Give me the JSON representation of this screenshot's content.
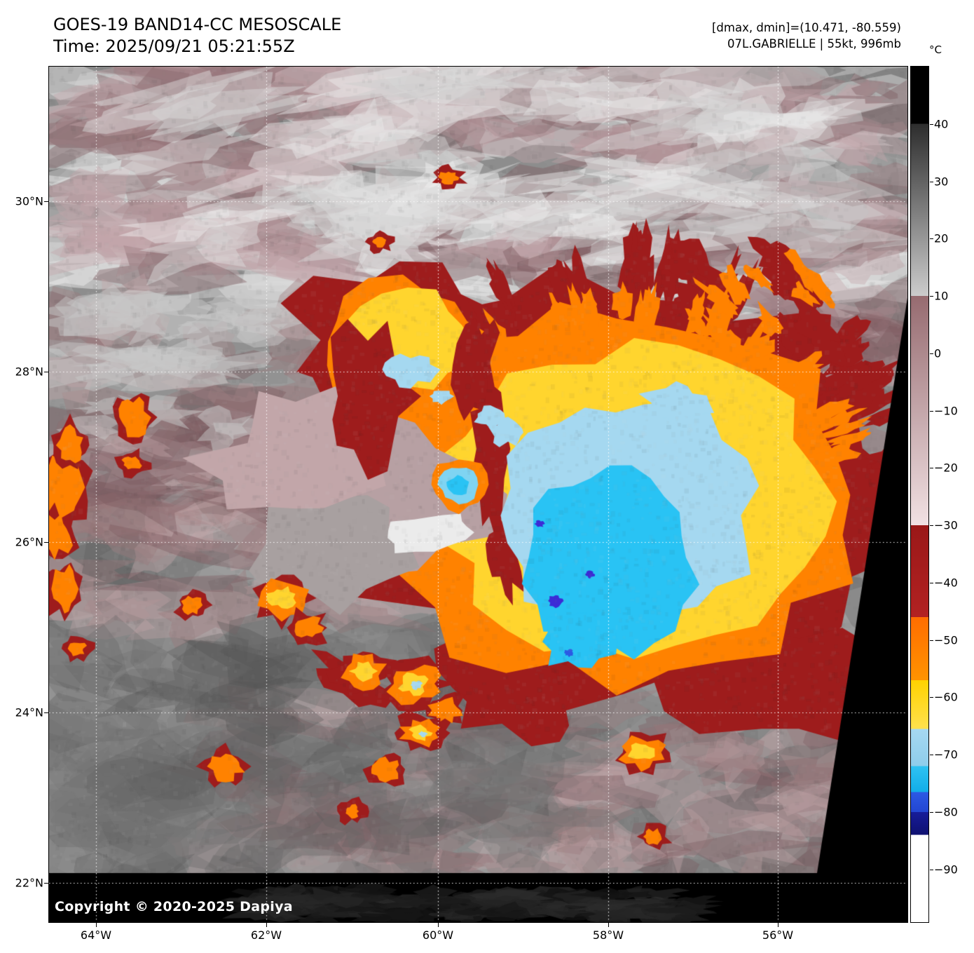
{
  "header": {
    "title": "GOES-19 BAND14-CC MESOSCALE",
    "time_line": "Time: 2025/09/21 05:21:55Z",
    "dmax_dmin": "[dmax, dmin]=(10.471, -80.559)",
    "storm_info": "07L.GABRIELLE | 55kt, 996mb"
  },
  "map": {
    "copyright": "Copyright © 2020-2025 Dapiya",
    "lat_labels": [
      "30°N",
      "28°N",
      "26°N",
      "24°N",
      "22°N"
    ],
    "lon_labels": [
      "64°W",
      "62°W",
      "60°W",
      "58°W",
      "56°W"
    ]
  },
  "colorbar": {
    "unit": "°C",
    "vmax": 50.0,
    "vmin": -99.2,
    "ticks": [
      {
        "label": "40",
        "value": 40
      },
      {
        "label": "30",
        "value": 30
      },
      {
        "label": "20",
        "value": 20
      },
      {
        "label": "10",
        "value": 10
      },
      {
        "label": "0",
        "value": 0
      },
      {
        "label": "−10",
        "value": -10
      },
      {
        "label": "−20",
        "value": -20
      },
      {
        "label": "−30",
        "value": -30
      },
      {
        "label": "−40",
        "value": -40
      },
      {
        "label": "−50",
        "value": -50
      },
      {
        "label": "−60",
        "value": -60
      },
      {
        "label": "−70",
        "value": -70
      },
      {
        "label": "−80",
        "value": -80
      },
      {
        "label": "−90",
        "value": -90
      }
    ],
    "stops": [
      {
        "from": 50.0,
        "to": 40.0,
        "c1": "#000000",
        "c2": "#000000"
      },
      {
        "from": 40.0,
        "to": 10.0,
        "c1": "#2d2d2d",
        "c2": "#cccccc"
      },
      {
        "from": 10.0,
        "to": -30.0,
        "c1": "#966b70",
        "c2": "#f1e1e3"
      },
      {
        "from": -30.0,
        "to": -46.0,
        "c1": "#9a1818",
        "c2": "#b22222"
      },
      {
        "from": -46.0,
        "to": -57.0,
        "c1": "#ff6d00",
        "c2": "#ff9300"
      },
      {
        "from": -57.0,
        "to": -65.5,
        "c1": "#ffd200",
        "c2": "#ffe14d"
      },
      {
        "from": -65.5,
        "to": -72.0,
        "c1": "#a6d8f1",
        "c2": "#8ecdeb"
      },
      {
        "from": -72.0,
        "to": -76.5,
        "c1": "#2fc2f2",
        "c2": "#12ade8"
      },
      {
        "from": -76.5,
        "to": -80.0,
        "c1": "#2c59e4",
        "c2": "#2346d2"
      },
      {
        "from": -80.0,
        "to": -84.0,
        "c1": "#171c9a",
        "c2": "#0f1170"
      },
      {
        "from": -84.0,
        "to": -99.2,
        "c1": "#ffffff",
        "c2": "#ffffff"
      }
    ]
  },
  "palette": {
    "gray_base": "#8d8d8d",
    "gray_dark": "#5e5e5e",
    "gray_light": "#c8c8c8",
    "cloud_white": "#ebebeb",
    "mauve": "#9a787c",
    "mauve_light": "#c2a6a9",
    "mauve_dark": "#7c5a5e",
    "dry_slot": "#b7a0a3",
    "dark_red": "#9e1c1c",
    "orange": "#ff8200",
    "yellow": "#ffd52e",
    "light_blue": "#a5d8f0",
    "cyan": "#29c3f4",
    "blue": "#2b59e4",
    "indigo": "#3c2bd6",
    "black": "#000000",
    "grid_white": "#ffffff"
  }
}
